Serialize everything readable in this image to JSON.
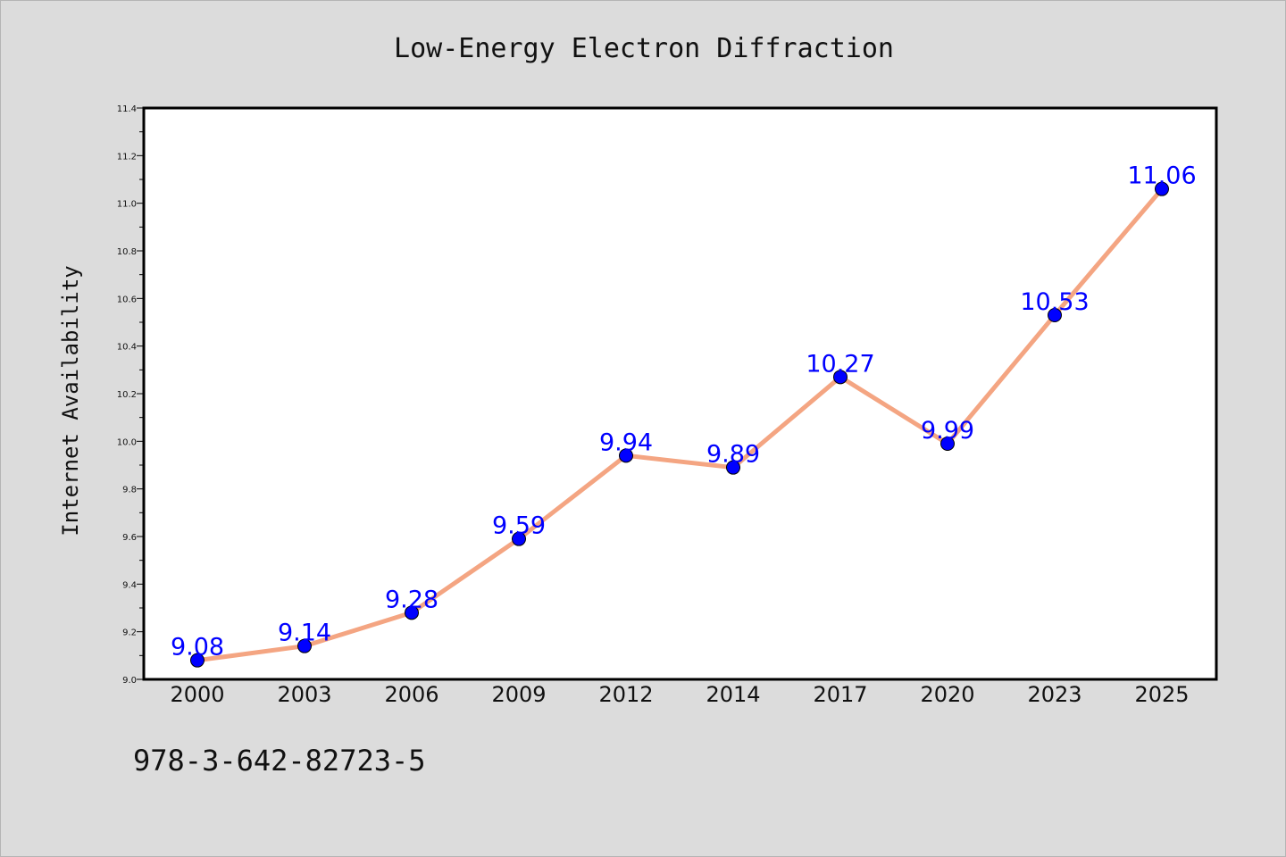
{
  "chart_data": {
    "type": "line",
    "title": "Low-Energy Electron Diffraction",
    "xlabel": "",
    "ylabel": "Internet Availability",
    "categories": [
      "2000",
      "2003",
      "2006",
      "2009",
      "2012",
      "2014",
      "2017",
      "2020",
      "2023",
      "2025"
    ],
    "series": [
      {
        "values": [
          9.08,
          9.14,
          9.28,
          9.59,
          9.94,
          9.89,
          10.27,
          9.99,
          10.53,
          11.06
        ],
        "line_color": "#f4a582",
        "marker_color": "#0000ff"
      }
    ],
    "data_labels": [
      "9.08",
      "9.14",
      "9.28",
      "9.59",
      "9.94",
      "9.89",
      "10.27",
      "9.99",
      "10.53",
      "11.06"
    ],
    "ylim": [
      9.0,
      11.4
    ],
    "yticks": [
      "9.0",
      "9.2",
      "9.4",
      "9.6",
      "9.8",
      "10.0",
      "10.2",
      "10.4",
      "10.6",
      "10.8",
      "11.0",
      "11.2",
      "11.4"
    ],
    "grid": false,
    "legend": "none"
  },
  "footer_text": "978-3-642-82723-5",
  "colors": {
    "background": "#dcdcdc",
    "plot_background": "#ffffff",
    "line": "#f4a582",
    "marker": "#0000ff",
    "label": "#0000ff"
  }
}
